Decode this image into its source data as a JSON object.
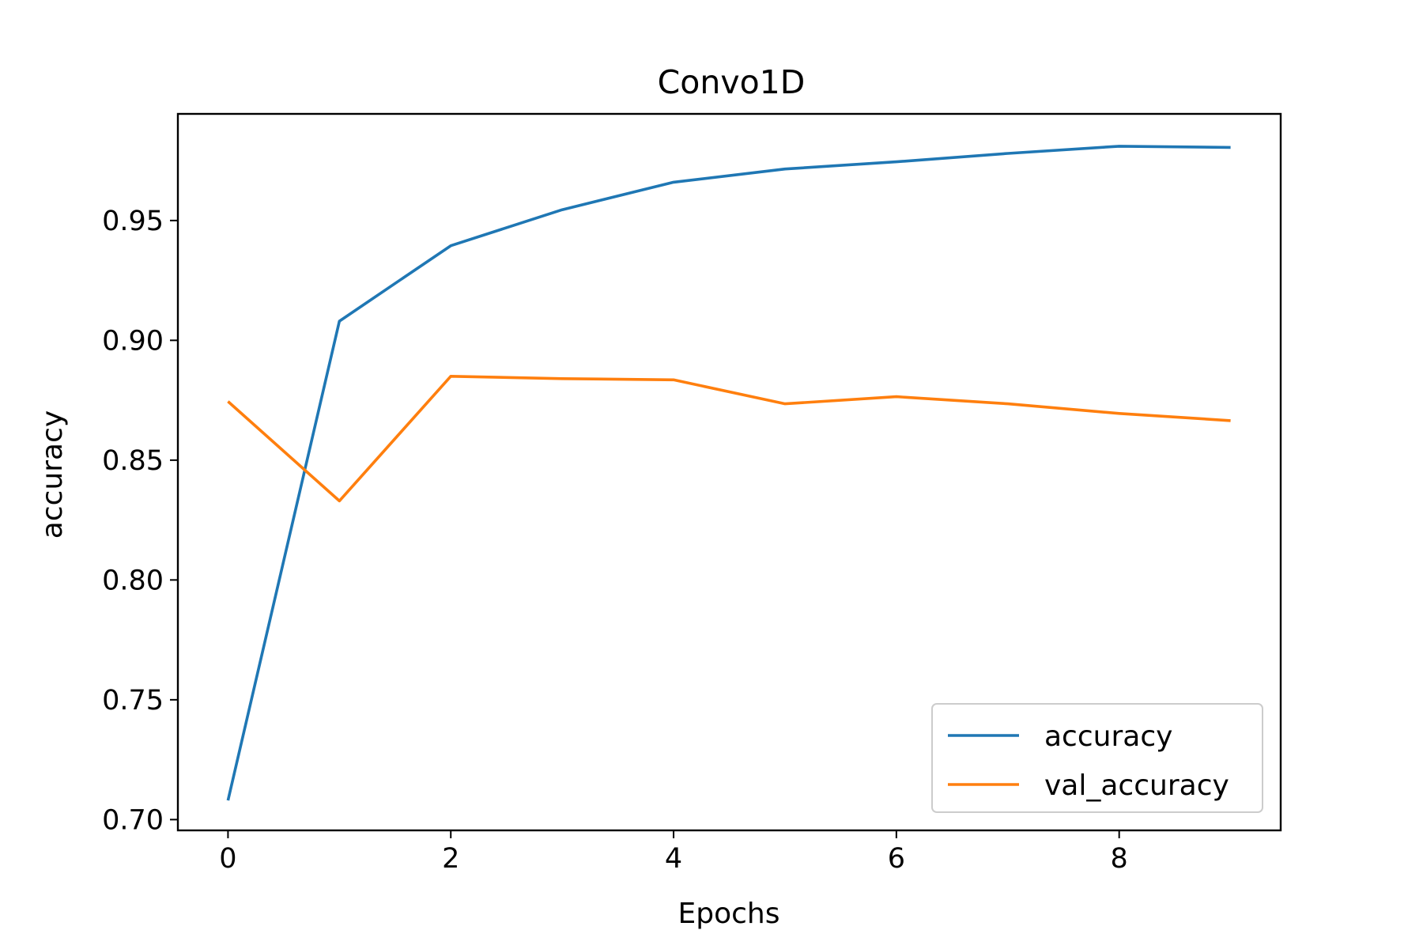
{
  "chart_data": {
    "type": "line",
    "title": "Convo1D",
    "xlabel": "Epochs",
    "ylabel": "accuracy",
    "x": [
      0,
      1,
      2,
      3,
      4,
      5,
      6,
      7,
      8,
      9
    ],
    "xlim": [
      -0.45,
      9.45
    ],
    "ylim": [
      0.6955,
      0.9945
    ],
    "xticks": [
      0,
      2,
      4,
      6,
      8
    ],
    "xtick_labels": [
      "0",
      "2",
      "4",
      "6",
      "8"
    ],
    "yticks": [
      0.7,
      0.75,
      0.8,
      0.85,
      0.9,
      0.95
    ],
    "ytick_labels": [
      "0.70",
      "0.75",
      "0.80",
      "0.85",
      "0.90",
      "0.95"
    ],
    "grid": false,
    "legend_position": "lower-right",
    "series": [
      {
        "name": "accuracy",
        "color": "#1f77b4",
        "values": [
          0.708,
          0.908,
          0.9395,
          0.9545,
          0.966,
          0.9715,
          0.9745,
          0.978,
          0.981,
          0.9805
        ]
      },
      {
        "name": "val_accuracy",
        "color": "#ff7f0e",
        "values": [
          0.8745,
          0.833,
          0.885,
          0.884,
          0.8835,
          0.8735,
          0.8765,
          0.8735,
          0.8695,
          0.8665
        ]
      }
    ]
  }
}
